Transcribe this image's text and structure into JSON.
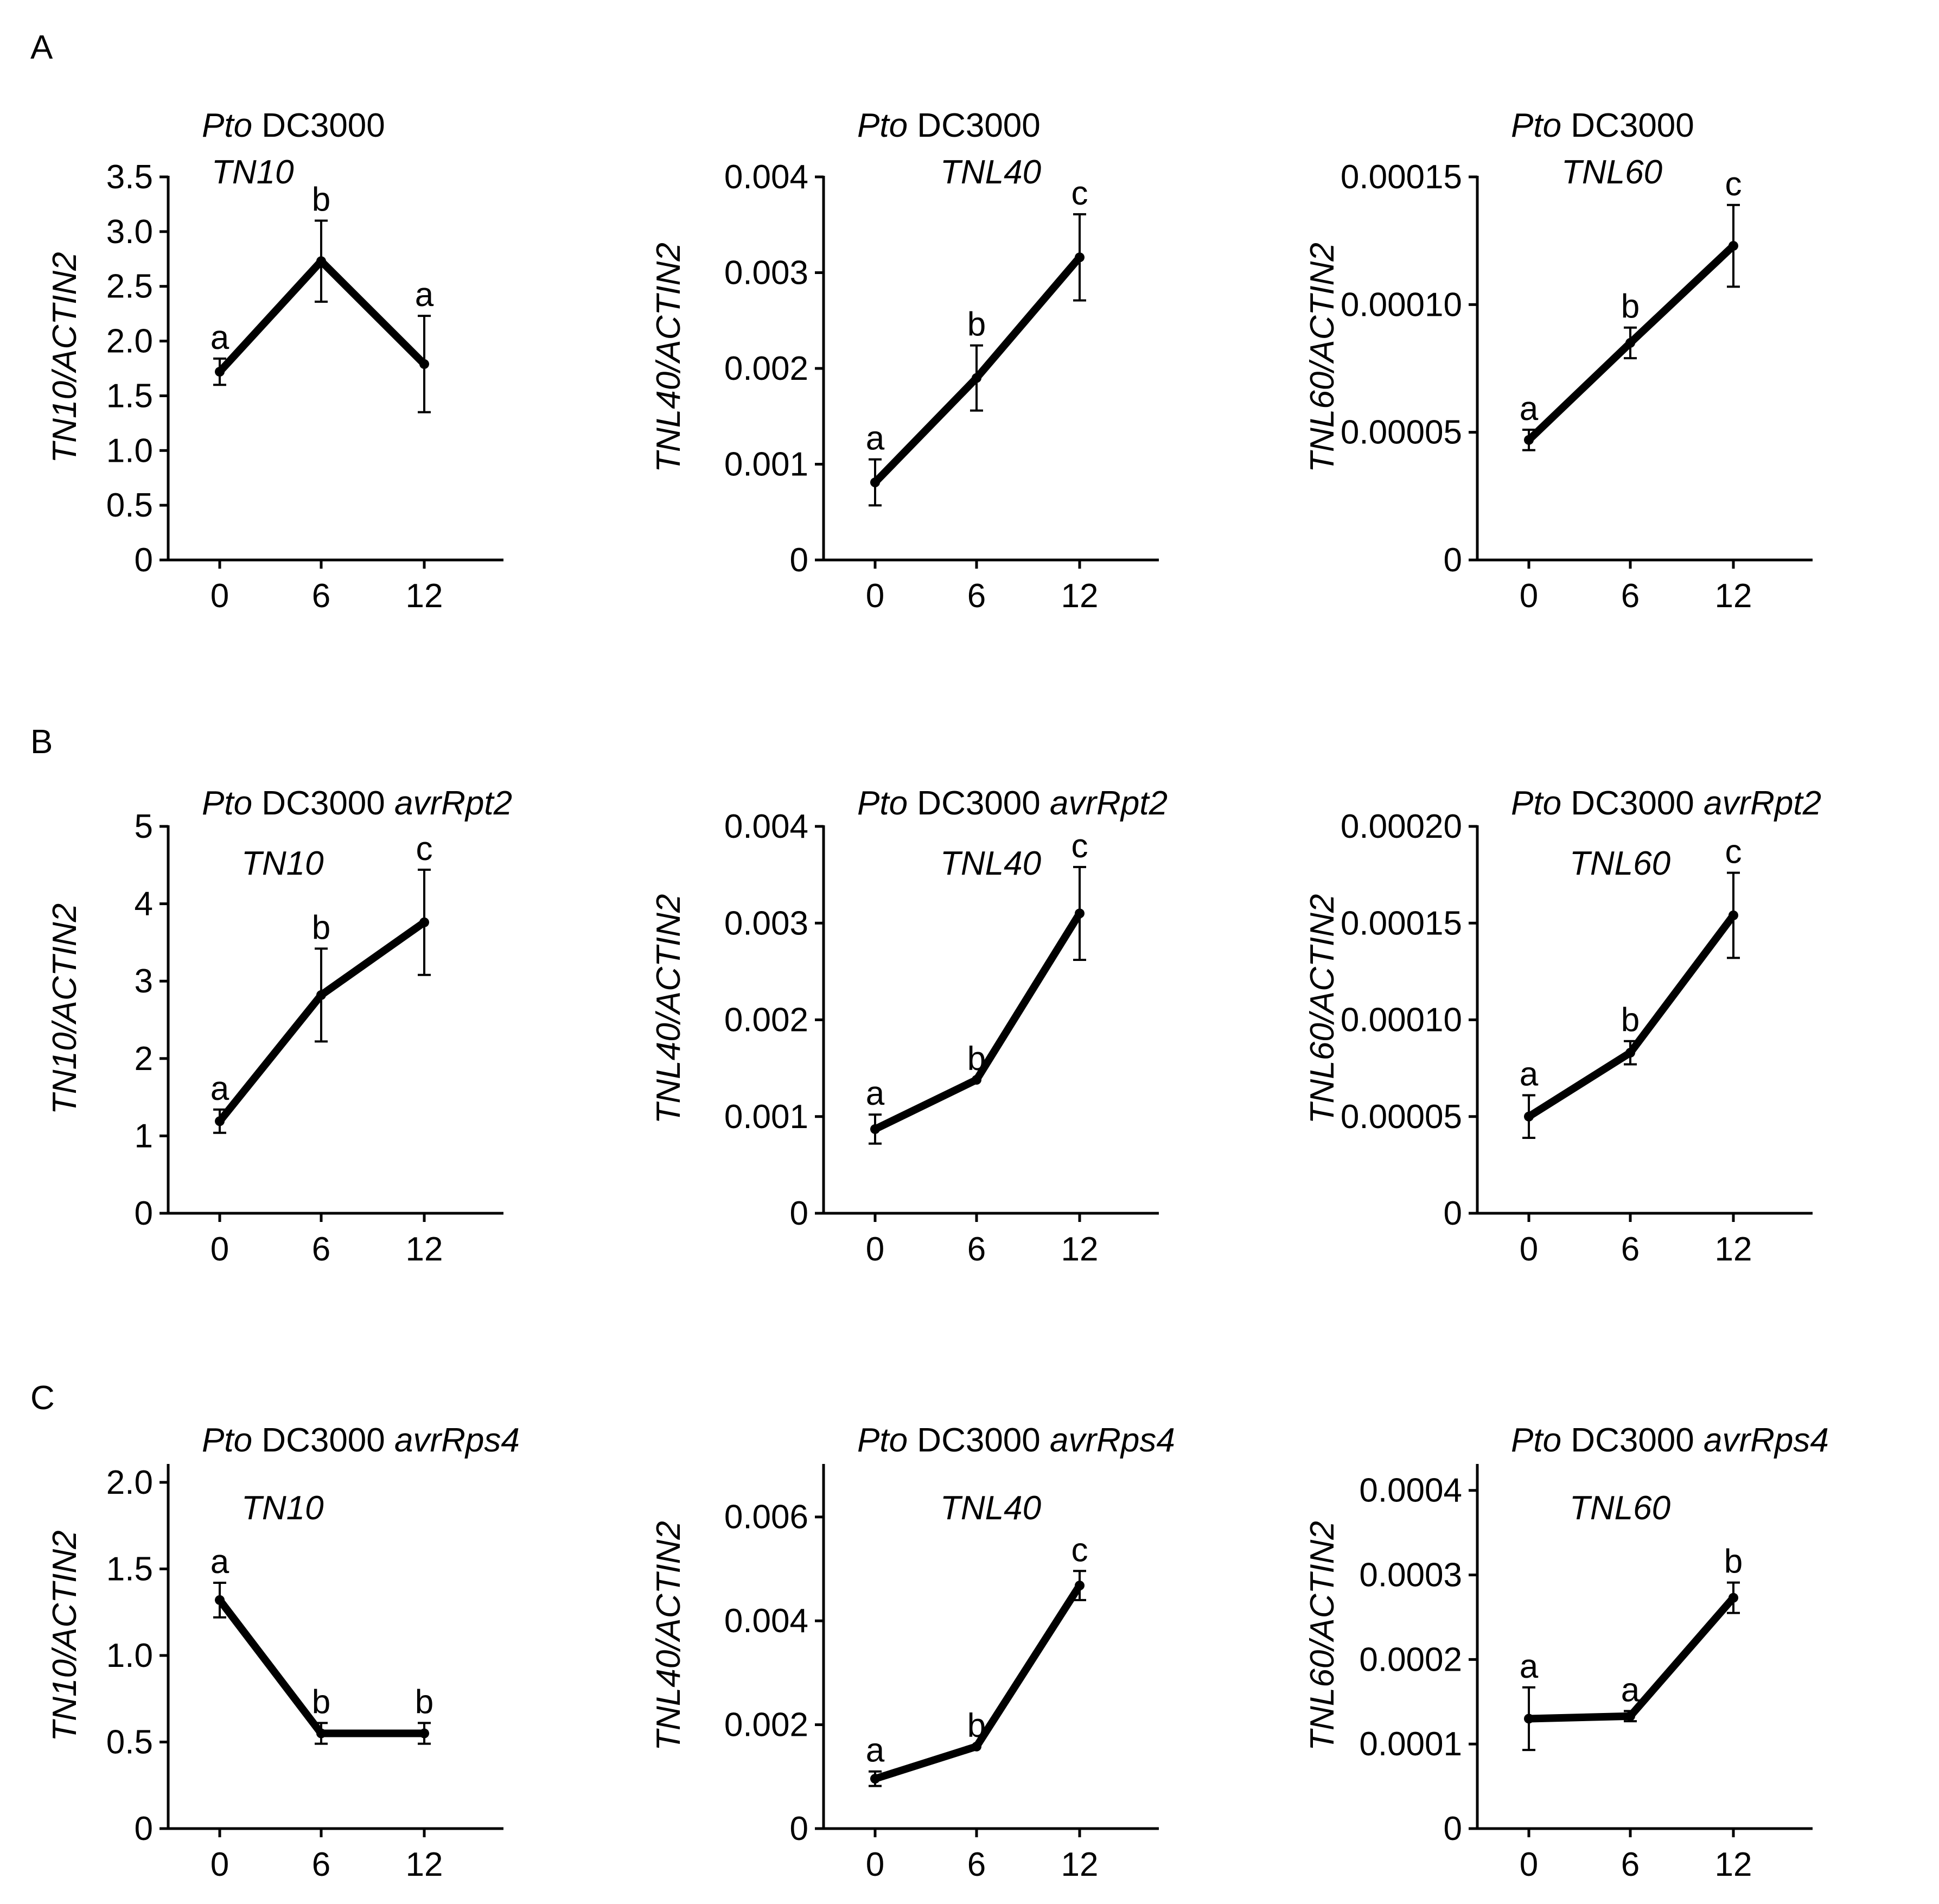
{
  "figure": {
    "panels": [
      {
        "label": "A"
      },
      {
        "label": "B"
      },
      {
        "label": "C"
      }
    ]
  },
  "chart_data": [
    {
      "type": "line",
      "panel": "A",
      "title_pre": "Pto",
      "title_post": " DC3000",
      "title_extra": "",
      "gene": "TN10",
      "ylabel": "TN10/ACTIN2",
      "x_ticks": [
        "0",
        "6",
        "12"
      ],
      "x": [
        0,
        6,
        12
      ],
      "values": [
        1.72,
        2.73,
        1.79
      ],
      "errors": [
        0.12,
        0.37,
        0.44
      ],
      "letters": [
        "a",
        "b",
        "a"
      ],
      "ylim": [
        0,
        3.5
      ],
      "y_ticks": [
        0,
        0.5,
        1.0,
        1.5,
        2.0,
        2.5,
        3.0,
        3.5
      ],
      "y_tick_labels": [
        "0",
        "0.5",
        "1.0",
        "1.5",
        "2.0",
        "2.5",
        "3.0",
        "3.5"
      ]
    },
    {
      "type": "line",
      "panel": "A",
      "title_pre": "Pto",
      "title_post": " DC3000",
      "title_extra": "",
      "gene": "TNL40",
      "ylabel": "TNL40/ACTIN2",
      "x_ticks": [
        "0",
        "6",
        "12"
      ],
      "x": [
        0,
        6,
        12
      ],
      "values": [
        0.00081,
        0.0019,
        0.00316
      ],
      "errors": [
        0.00024,
        0.00034,
        0.00045
      ],
      "letters": [
        "a",
        "b",
        "c"
      ],
      "ylim": [
        0,
        0.004
      ],
      "y_ticks": [
        0,
        0.001,
        0.002,
        0.003,
        0.004
      ],
      "y_tick_labels": [
        "0",
        "0.001",
        "0.002",
        "0.003",
        "0.004"
      ]
    },
    {
      "type": "line",
      "panel": "A",
      "title_pre": "Pto",
      "title_post": " DC3000",
      "title_extra": "",
      "gene": "TNL60",
      "ylabel": "TNL60/ACTIN2",
      "x_ticks": [
        "0",
        "6",
        "12"
      ],
      "x": [
        0,
        6,
        12
      ],
      "values": [
        4.7e-05,
        8.5e-05,
        0.000123
      ],
      "errors": [
        4e-06,
        6e-06,
        1.6e-05
      ],
      "letters": [
        "a",
        "b",
        "c"
      ],
      "ylim": [
        0,
        0.00015
      ],
      "y_ticks": [
        0,
        5e-05,
        0.0001,
        0.00015
      ],
      "y_tick_labels": [
        "0",
        "0.00005",
        "0.00010",
        "0.00015"
      ]
    },
    {
      "type": "line",
      "panel": "B",
      "title_pre": "Pto",
      "title_post": " DC3000 ",
      "title_extra": "avrRpt2",
      "gene": "TN10",
      "ylabel": "TN10/ACTIN2",
      "x_ticks": [
        "0",
        "6",
        "12"
      ],
      "x": [
        0,
        6,
        12
      ],
      "values": [
        1.19,
        2.82,
        3.76
      ],
      "errors": [
        0.15,
        0.6,
        0.68
      ],
      "letters": [
        "a",
        "b",
        "c"
      ],
      "ylim": [
        0,
        5
      ],
      "y_ticks": [
        0,
        1,
        2,
        3,
        4,
        5
      ],
      "y_tick_labels": [
        "0",
        "1",
        "2",
        "3",
        "4",
        "5"
      ]
    },
    {
      "type": "line",
      "panel": "B",
      "title_pre": "Pto",
      "title_post": " DC3000 ",
      "title_extra": "avrRpt2",
      "gene": "TNL40",
      "ylabel": "TNL40/ACTIN2",
      "x_ticks": [
        "0",
        "6",
        "12"
      ],
      "x": [
        0,
        6,
        12
      ],
      "values": [
        0.00087,
        0.00138,
        0.0031
      ],
      "errors": [
        0.00015,
        0,
        0.00048
      ],
      "letters": [
        "a",
        "b",
        "c"
      ],
      "ylim": [
        0,
        0.004
      ],
      "y_ticks": [
        0,
        0.001,
        0.002,
        0.003,
        0.004
      ],
      "y_tick_labels": [
        "0",
        "0.001",
        "0.002",
        "0.003",
        "0.004"
      ]
    },
    {
      "type": "line",
      "panel": "B",
      "title_pre": "Pto",
      "title_post": " DC3000 ",
      "title_extra": "avrRpt2",
      "gene": "TNL60",
      "ylabel": "TNL60/ACTIN2",
      "x_ticks": [
        "0",
        "6",
        "12"
      ],
      "x": [
        0,
        6,
        12
      ],
      "values": [
        5e-05,
        8.3e-05,
        0.000154
      ],
      "errors": [
        1.1e-05,
        6e-06,
        2.2e-05
      ],
      "letters": [
        "a",
        "b",
        "c"
      ],
      "ylim": [
        0,
        0.0002
      ],
      "y_ticks": [
        0,
        5e-05,
        0.0001,
        0.00015,
        0.0002
      ],
      "y_tick_labels": [
        "0",
        "0.00005",
        "0.00010",
        "0.00015",
        "0.00020"
      ]
    },
    {
      "type": "line",
      "panel": "C",
      "title_pre": "Pto",
      "title_post": " DC3000 ",
      "title_extra": "avrRps4",
      "gene": "TN10",
      "ylabel": "TN10/ACTIN2",
      "x_ticks": [
        "0",
        "6",
        "12"
      ],
      "x": [
        0,
        6,
        12
      ],
      "values": [
        1.32,
        0.55,
        0.55
      ],
      "errors": [
        0.1,
        0.06,
        0.06
      ],
      "letters": [
        "a",
        "b",
        "b"
      ],
      "ylim": [
        0,
        2.1
      ],
      "y_ticks": [
        0,
        0.5,
        1.0,
        1.5,
        2.0
      ],
      "y_tick_labels": [
        "0",
        "0.5",
        "1.0",
        "1.5",
        "2.0"
      ]
    },
    {
      "type": "line",
      "panel": "C",
      "title_pre": "Pto",
      "title_post": " DC3000 ",
      "title_extra": "avrRps4",
      "gene": "TNL40",
      "ylabel": "TNL40/ACTIN2",
      "x_ticks": [
        "0",
        "6",
        "12"
      ],
      "x": [
        0,
        6,
        12
      ],
      "values": [
        0.00096,
        0.00158,
        0.00468
      ],
      "errors": [
        0.00014,
        0,
        0.00028
      ],
      "letters": [
        "a",
        "b",
        "c"
      ],
      "ylim": [
        0,
        0.007
      ],
      "y_ticks": [
        0,
        0.002,
        0.004,
        0.006
      ],
      "y_tick_labels": [
        "0",
        "0.002",
        "0.004",
        "0.006"
      ]
    },
    {
      "type": "line",
      "panel": "C",
      "title_pre": "Pto",
      "title_post": " DC3000 ",
      "title_extra": "avrRps4",
      "gene": "TNL60",
      "ylabel": "TNL60/ACTIN2",
      "x_ticks": [
        "0",
        "6",
        "12"
      ],
      "x": [
        0,
        6,
        12
      ],
      "values": [
        0.00013,
        0.000133,
        0.000273
      ],
      "errors": [
        3.7e-05,
        6e-06,
        1.8e-05
      ],
      "letters": [
        "a",
        "a",
        "b"
      ],
      "ylim": [
        0,
        0.00043
      ],
      "y_ticks": [
        0,
        0.0001,
        0.0002,
        0.0003,
        0.0004
      ],
      "y_tick_labels": [
        "0",
        "0.0001",
        "0.0002",
        "0.0003",
        "0.0004"
      ]
    }
  ]
}
